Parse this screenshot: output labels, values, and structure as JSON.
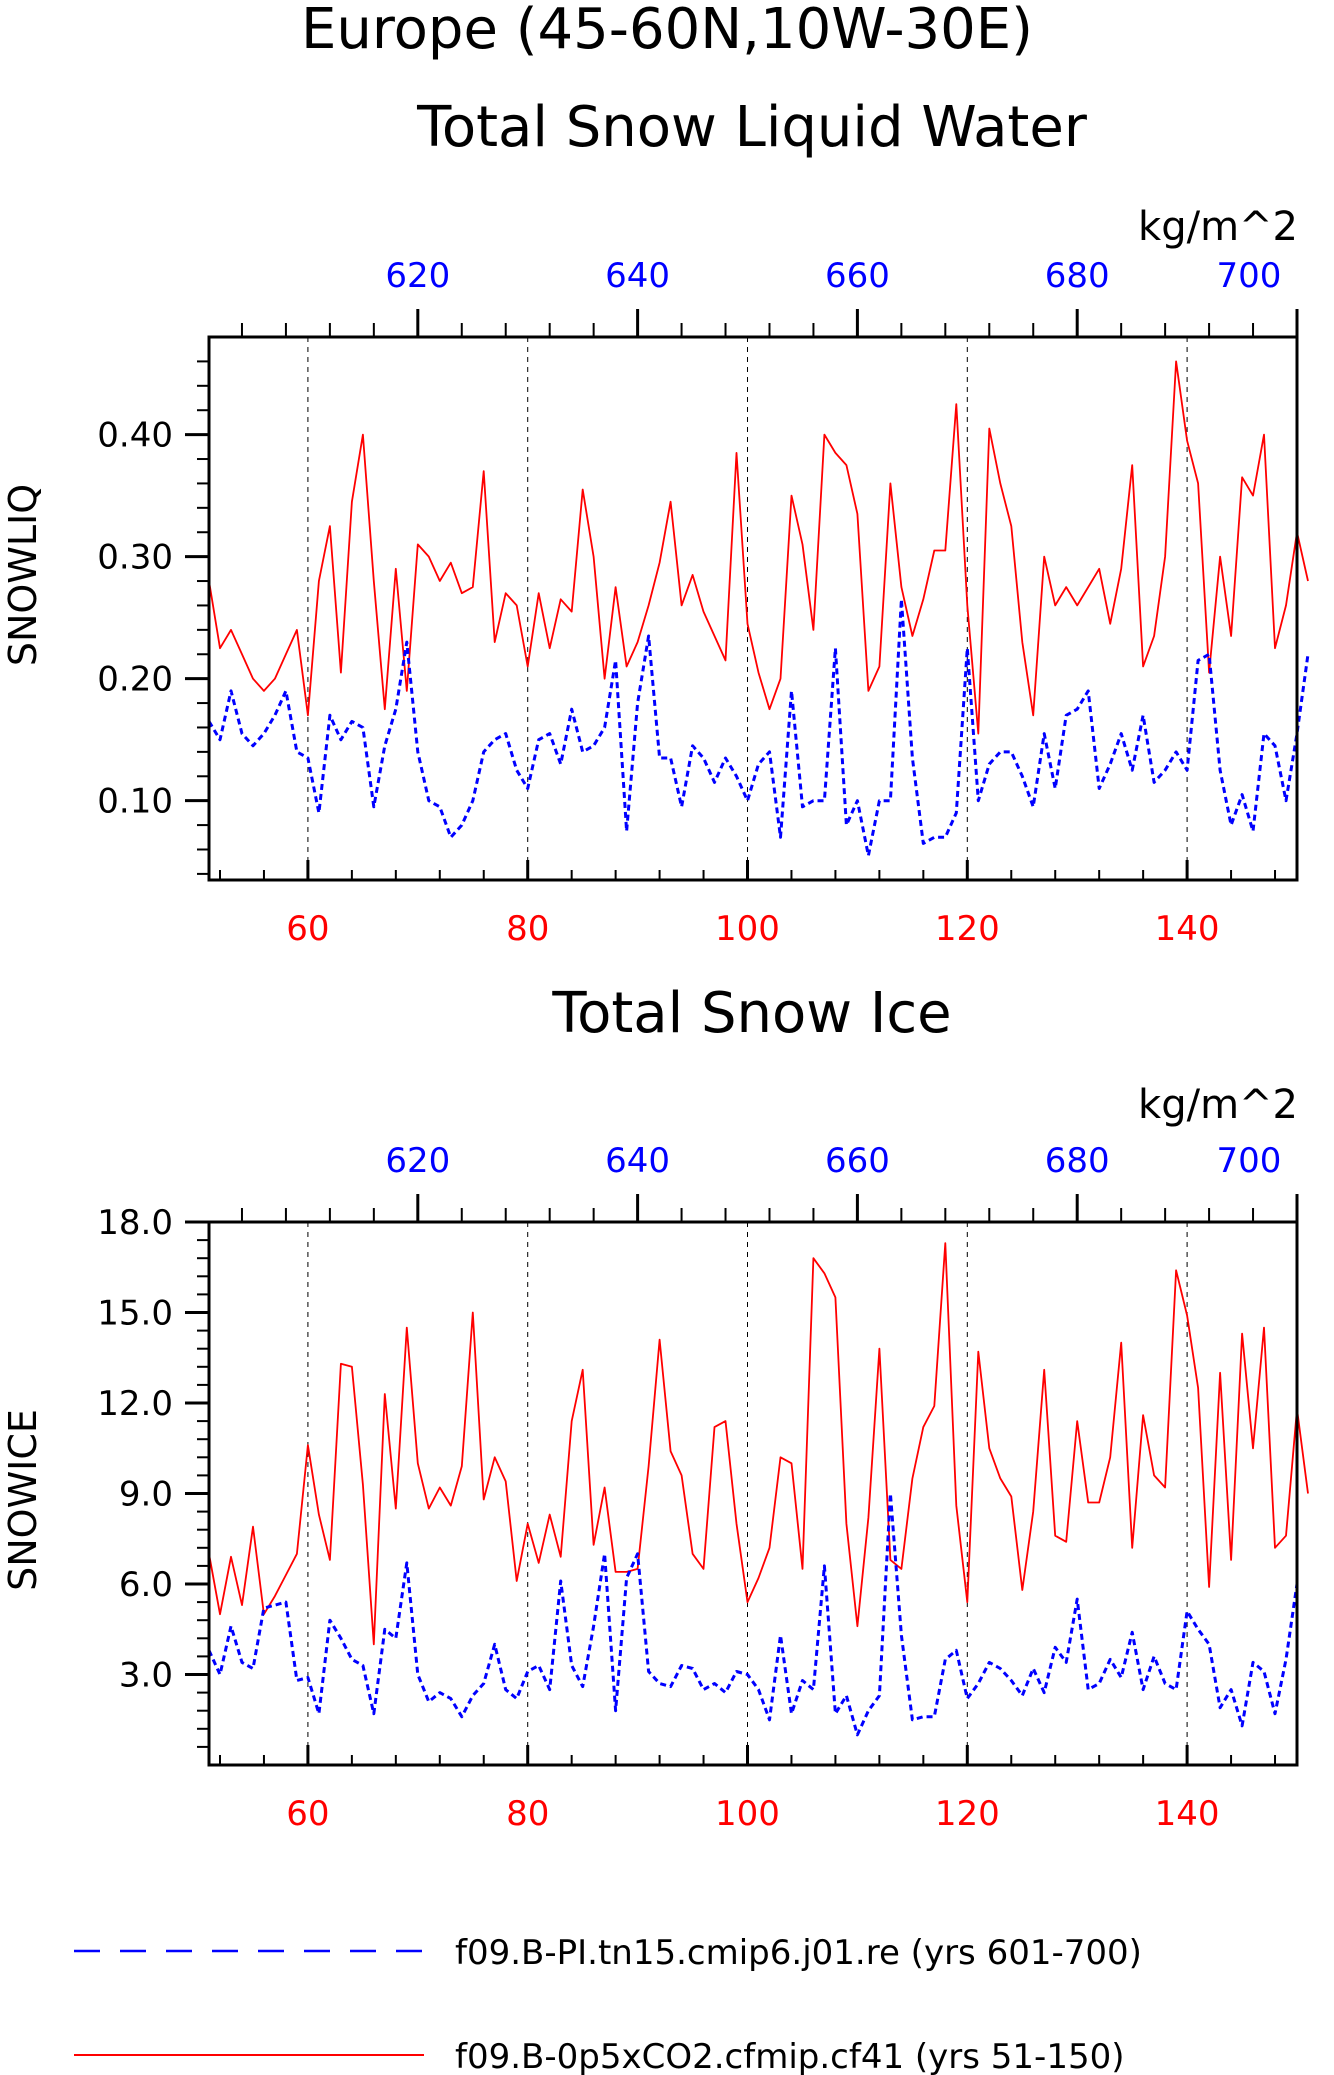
{
  "page": {
    "title": "Europe (45-60N,10W-30E)"
  },
  "legend": [
    {
      "label": "f09.B-PI.tn15.cmip6.j01.re (yrs 601-700)",
      "color": "#0000ff",
      "style": "dashed"
    },
    {
      "label": "f09.B-0p5xCO2.cfmip.cf41 (yrs 51-150)",
      "color": "#ff0000",
      "style": "solid"
    }
  ],
  "chart_data": [
    {
      "type": "line",
      "title": "Total Snow Liquid Water",
      "units": "kg/m^2",
      "ylabel": "SNOWLIQ",
      "ylim": [
        0.035,
        0.48
      ],
      "yticks": [
        0.1,
        0.2,
        0.3,
        0.4
      ],
      "ytick_labels": [
        "0.10",
        "0.20",
        "0.30",
        "0.40"
      ],
      "bottom_x_axis": {
        "xlim": [
          51,
          150
        ],
        "ticks": [
          60,
          80,
          100,
          120,
          140
        ],
        "labels": [
          "60",
          "80",
          "100",
          "120",
          "140"
        ],
        "color": "#ff0000"
      },
      "top_x_axis": {
        "xlim": [
          601,
          700
        ],
        "ticks": [
          620,
          640,
          660,
          680,
          700
        ],
        "labels": [
          "620",
          "640",
          "660",
          "680",
          "700"
        ],
        "color": "#0000ff"
      },
      "grid": "vertical dashed at bottom-axis major ticks",
      "series": [
        {
          "axis": "bottom",
          "color": "#ff0000",
          "style": "solid",
          "x_start": 51,
          "values": [
            0.28,
            0.225,
            0.24,
            0.22,
            0.2,
            0.19,
            0.2,
            0.22,
            0.24,
            0.17,
            0.28,
            0.325,
            0.205,
            0.345,
            0.4,
            0.28,
            0.175,
            0.29,
            0.19,
            0.31,
            0.3,
            0.28,
            0.295,
            0.27,
            0.275,
            0.37,
            0.23,
            0.27,
            0.26,
            0.21,
            0.27,
            0.225,
            0.265,
            0.255,
            0.355,
            0.3,
            0.2,
            0.275,
            0.21,
            0.23,
            0.26,
            0.295,
            0.345,
            0.26,
            0.285,
            0.255,
            0.235,
            0.215,
            0.385,
            0.245,
            0.205,
            0.175,
            0.2,
            0.35,
            0.31,
            0.24,
            0.4,
            0.385,
            0.375,
            0.335,
            0.19,
            0.21,
            0.36,
            0.275,
            0.235,
            0.265,
            0.305,
            0.305,
            0.425,
            0.26,
            0.155,
            0.405,
            0.36,
            0.325,
            0.23,
            0.17,
            0.3,
            0.26,
            0.275,
            0.26,
            0.275,
            0.29,
            0.245,
            0.29,
            0.375,
            0.21,
            0.235,
            0.3,
            0.46,
            0.395,
            0.36,
            0.205,
            0.3,
            0.235,
            0.365,
            0.35,
            0.4,
            0.225,
            0.26,
            0.32,
            0.28
          ]
        },
        {
          "axis": "top",
          "color": "#0000ff",
          "style": "dashed",
          "x_start": 601,
          "values": [
            0.165,
            0.15,
            0.19,
            0.155,
            0.145,
            0.155,
            0.17,
            0.19,
            0.14,
            0.135,
            0.09,
            0.17,
            0.15,
            0.165,
            0.16,
            0.095,
            0.145,
            0.175,
            0.23,
            0.14,
            0.1,
            0.095,
            0.07,
            0.08,
            0.1,
            0.14,
            0.15,
            0.155,
            0.125,
            0.11,
            0.15,
            0.155,
            0.13,
            0.175,
            0.14,
            0.145,
            0.16,
            0.215,
            0.075,
            0.18,
            0.235,
            0.135,
            0.135,
            0.095,
            0.145,
            0.135,
            0.115,
            0.135,
            0.12,
            0.1,
            0.13,
            0.14,
            0.07,
            0.19,
            0.095,
            0.1,
            0.1,
            0.225,
            0.08,
            0.1,
            0.055,
            0.1,
            0.1,
            0.265,
            0.135,
            0.065,
            0.07,
            0.07,
            0.09,
            0.225,
            0.1,
            0.13,
            0.14,
            0.14,
            0.12,
            0.095,
            0.155,
            0.11,
            0.17,
            0.175,
            0.19,
            0.11,
            0.13,
            0.155,
            0.125,
            0.17,
            0.115,
            0.125,
            0.14,
            0.125,
            0.215,
            0.22,
            0.125,
            0.08,
            0.105,
            0.075,
            0.155,
            0.145,
            0.1,
            0.155,
            0.22
          ]
        }
      ]
    },
    {
      "type": "line",
      "title": "Total Snow Ice",
      "units": "kg/m^2",
      "ylabel": "SNOWICE",
      "ylim": [
        0.0,
        18.0
      ],
      "yticks": [
        3.0,
        6.0,
        9.0,
        12.0,
        15.0,
        18.0
      ],
      "ytick_labels": [
        "3.0",
        "6.0",
        "9.0",
        "12.0",
        "15.0",
        "18.0"
      ],
      "bottom_x_axis": {
        "xlim": [
          51,
          150
        ],
        "ticks": [
          60,
          80,
          100,
          120,
          140
        ],
        "labels": [
          "60",
          "80",
          "100",
          "120",
          "140"
        ],
        "color": "#ff0000"
      },
      "top_x_axis": {
        "xlim": [
          601,
          700
        ],
        "ticks": [
          620,
          640,
          660,
          680,
          700
        ],
        "labels": [
          "620",
          "640",
          "660",
          "680",
          "700"
        ],
        "color": "#0000ff"
      },
      "grid": "vertical dashed at bottom-axis major ticks",
      "series": [
        {
          "axis": "bottom",
          "color": "#ff0000",
          "style": "solid",
          "x_start": 51,
          "values": [
            7.0,
            5.0,
            6.9,
            5.3,
            7.9,
            5.0,
            5.6,
            6.3,
            7.0,
            10.6,
            8.3,
            6.8,
            13.3,
            13.2,
            9.3,
            4.0,
            12.3,
            8.5,
            14.5,
            10.0,
            8.5,
            9.2,
            8.6,
            9.9,
            15.0,
            8.8,
            10.2,
            9.4,
            6.1,
            8.0,
            6.7,
            8.3,
            6.9,
            11.4,
            13.1,
            7.3,
            9.2,
            6.4,
            6.4,
            6.5,
            9.9,
            14.1,
            10.4,
            9.6,
            7.0,
            6.5,
            11.2,
            11.4,
            8.0,
            5.4,
            6.2,
            7.2,
            10.2,
            10.0,
            6.5,
            16.8,
            16.3,
            15.5,
            8.0,
            4.6,
            8.2,
            13.8,
            6.8,
            6.5,
            9.5,
            11.2,
            11.9,
            17.3,
            8.6,
            5.4,
            13.7,
            10.5,
            9.5,
            8.9,
            5.8,
            8.4,
            13.1,
            7.6,
            7.4,
            11.4,
            8.7,
            8.7,
            10.2,
            14.0,
            7.2,
            11.6,
            9.6,
            9.2,
            16.4,
            14.9,
            12.5,
            5.9,
            13.0,
            6.8,
            14.3,
            10.5,
            14.5,
            7.2,
            7.6,
            11.8,
            9.0
          ]
        },
        {
          "axis": "top",
          "color": "#0000ff",
          "style": "dashed",
          "x_start": 601,
          "values": [
            3.8,
            3.0,
            4.6,
            3.4,
            3.2,
            5.2,
            5.3,
            5.4,
            2.8,
            2.9,
            1.7,
            4.8,
            4.2,
            3.5,
            3.3,
            1.7,
            4.5,
            4.2,
            6.7,
            3.0,
            2.1,
            2.4,
            2.2,
            1.6,
            2.3,
            2.7,
            4.0,
            2.5,
            2.2,
            3.1,
            3.3,
            2.5,
            6.1,
            3.3,
            2.6,
            4.6,
            7.0,
            1.8,
            6.2,
            7.0,
            3.1,
            2.7,
            2.6,
            3.3,
            3.2,
            2.5,
            2.7,
            2.4,
            3.1,
            3.0,
            2.5,
            1.5,
            4.3,
            1.7,
            2.8,
            2.5,
            6.6,
            1.7,
            2.3,
            1.0,
            1.8,
            2.3,
            9.0,
            4.3,
            1.5,
            1.6,
            1.6,
            3.5,
            3.8,
            2.2,
            2.7,
            3.4,
            3.2,
            2.8,
            2.3,
            3.2,
            2.4,
            3.9,
            3.4,
            5.5,
            2.5,
            2.7,
            3.5,
            2.9,
            4.4,
            2.5,
            3.6,
            2.7,
            2.5,
            5.1,
            4.5,
            4.0,
            1.9,
            2.5,
            1.3,
            3.4,
            3.1,
            1.7,
            3.5,
            6.0
          ]
        }
      ]
    }
  ]
}
